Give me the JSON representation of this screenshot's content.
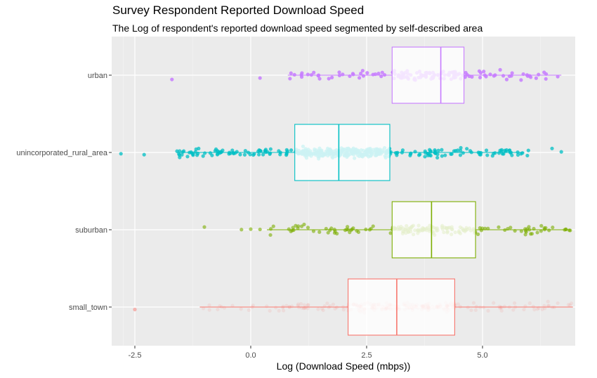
{
  "chart_data": {
    "type": "boxplot",
    "title": "Survey Respondent Reported Download Speed",
    "subtitle": "The Log of respondent's reported download speed segmented by self-described area",
    "xlabel": "Log (Download Speed (mbps))",
    "ylabel": "",
    "orientation": "horizontal",
    "xlim": [
      -3.0,
      7.0
    ],
    "x_ticks": [
      -2.5,
      0.0,
      2.5,
      5.0
    ],
    "x_tick_labels": [
      "-2.5",
      "0.0",
      "2.5",
      "5.0"
    ],
    "categories": [
      "urban",
      "unincorporated_rural_area",
      "suburban",
      "small_town"
    ],
    "grid": true,
    "legend": "none",
    "series": [
      {
        "category": "urban",
        "color": "#c77cff",
        "point_alpha": 0.85,
        "whisker_low": 0.8,
        "q1": 3.05,
        "median": 4.1,
        "q3": 4.6,
        "whisker_high": 6.7,
        "outliers": [
          -1.7,
          0.2
        ],
        "points_range": [
          0.8,
          6.7
        ],
        "n_points": 140
      },
      {
        "category": "unincorporated_rural_area",
        "color": "#00bfc4",
        "point_alpha": 0.75,
        "whisker_low": -1.6,
        "q1": 0.95,
        "median": 1.9,
        "q3": 3.0,
        "whisker_high": 5.9,
        "outliers": [
          -2.8,
          -2.3,
          6.5,
          6.7
        ],
        "points_range": [
          -1.6,
          6.0
        ],
        "n_points": 420
      },
      {
        "category": "suburban",
        "color": "#7cae00",
        "point_alpha": 0.6,
        "whisker_low": 0.35,
        "q1": 3.05,
        "median": 3.9,
        "q3": 4.85,
        "whisker_high": 6.9,
        "outliers": [
          -1.0,
          -0.2,
          0.0,
          0.2
        ],
        "points_range": [
          0.35,
          6.9
        ],
        "n_points": 170
      },
      {
        "category": "small_town",
        "color": "#f8766d",
        "point_alpha": 0.12,
        "whisker_low": -1.1,
        "q1": 2.1,
        "median": 3.15,
        "q3": 4.4,
        "whisker_high": 6.95,
        "outliers": [
          -2.5
        ],
        "points_range": [
          -1.1,
          6.95
        ],
        "n_points": 240
      }
    ]
  }
}
